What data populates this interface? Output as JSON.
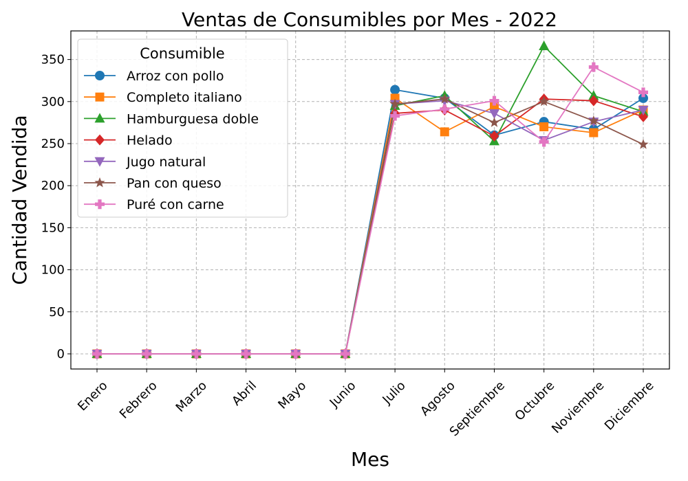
{
  "chart_data": {
    "type": "line",
    "title": "Ventas de Consumibles por Mes - 2022",
    "xlabel": "Mes",
    "ylabel": "Cantidad Vendida",
    "categories": [
      "Enero",
      "Febrero",
      "Marzo",
      "Abril",
      "Mayo",
      "Junio",
      "Julio",
      "Agosto",
      "Septiembre",
      "Octubre",
      "Noviembre",
      "Diciembre"
    ],
    "ylim": [
      -18,
      384
    ],
    "yticks": [
      0,
      50,
      100,
      150,
      200,
      250,
      300,
      350
    ],
    "grid": true,
    "legend": {
      "title": "Consumible",
      "placement": "top-left"
    },
    "series": [
      {
        "name": "Arroz con pollo",
        "color": "#1f77b4",
        "marker": "circle",
        "values": [
          0,
          0,
          0,
          0,
          0,
          0,
          314,
          304,
          260,
          276,
          267,
          304
        ]
      },
      {
        "name": "Completo italiano",
        "color": "#ff7f0e",
        "marker": "square",
        "values": [
          0,
          0,
          0,
          0,
          0,
          0,
          304,
          264,
          294,
          270,
          263,
          290
        ]
      },
      {
        "name": "Hamburguesa doble",
        "color": "#2ca02c",
        "marker": "triangle-up",
        "values": [
          0,
          0,
          0,
          0,
          0,
          0,
          295,
          307,
          253,
          366,
          307,
          288
        ]
      },
      {
        "name": "Helado",
        "color": "#d62728",
        "marker": "diamond",
        "values": [
          0,
          0,
          0,
          0,
          0,
          0,
          286,
          290,
          259,
          303,
          301,
          282
        ]
      },
      {
        "name": "Jugo natural",
        "color": "#9467bd",
        "marker": "triangle-down",
        "values": [
          0,
          0,
          0,
          0,
          0,
          0,
          297,
          301,
          286,
          254,
          276,
          290
        ]
      },
      {
        "name": "Pan con queso",
        "color": "#8c564b",
        "marker": "star",
        "values": [
          0,
          0,
          0,
          0,
          0,
          0,
          297,
          303,
          275,
          300,
          277,
          249
        ]
      },
      {
        "name": "Puré con carne",
        "color": "#e377c2",
        "marker": "plus",
        "values": [
          0,
          0,
          0,
          0,
          0,
          0,
          283,
          291,
          301,
          252,
          341,
          311
        ]
      }
    ]
  }
}
